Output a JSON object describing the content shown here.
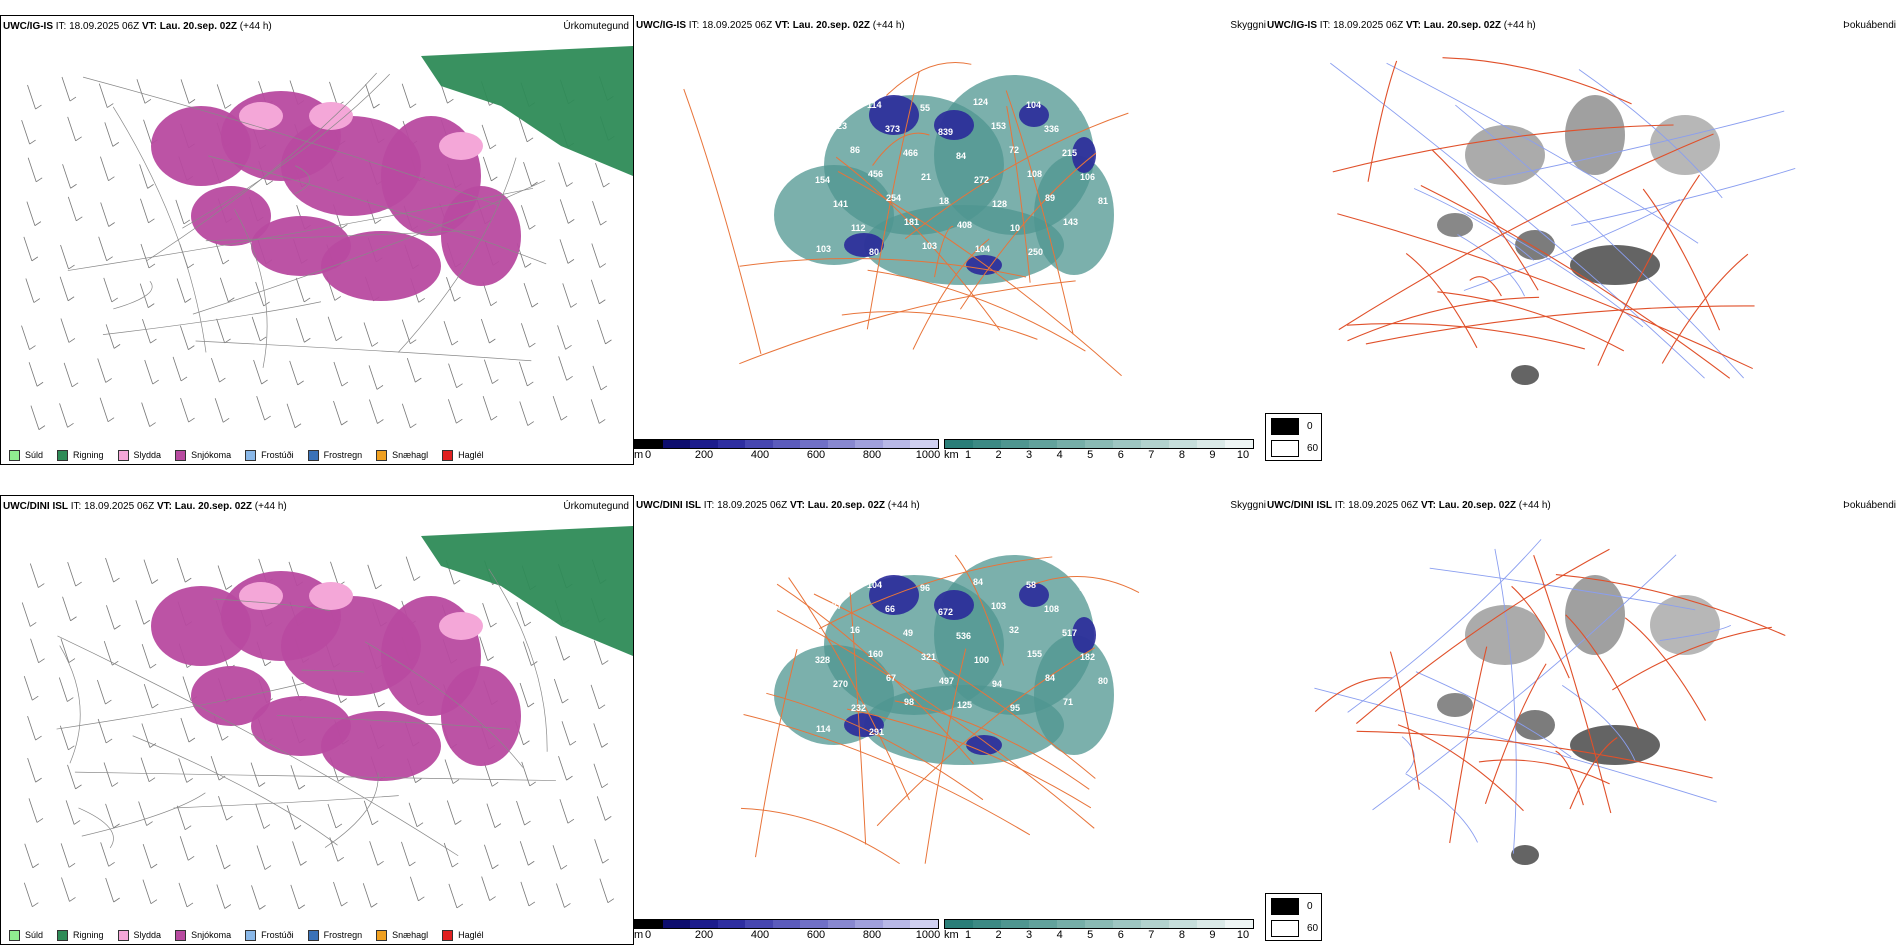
{
  "rows": [
    {
      "model": "UWC/IG-IS",
      "it_label": "IT:",
      "it_value": "18.09.2025 06Z",
      "vt_label": "VT:",
      "vt_value": "Lau. 20.sep. 02Z",
      "lead": "(+44 h)",
      "precip_title": "Úrkomutegund",
      "cloud_title": "Skyggni",
      "fog_title": "Þokuábendi",
      "numbers": [
        "148",
        "114",
        "55",
        "124",
        "104",
        "53",
        "323",
        "373",
        "839",
        "153",
        "336",
        "55",
        "86",
        "466",
        "84",
        "72",
        "215",
        "154",
        "456",
        "21",
        "272",
        "108",
        "106",
        "141",
        "254",
        "18",
        "128",
        "89",
        "81",
        "112",
        "181",
        "408",
        "10",
        "143",
        "103",
        "80",
        "103",
        "104",
        "250"
      ]
    },
    {
      "model": "UWC/DINI ISL",
      "it_label": "IT:",
      "it_value": "18.09.2025 06Z",
      "vt_label": "VT:",
      "vt_value": "Lau. 20.sep. 02Z",
      "lead": "(+44 h)",
      "precip_title": "Úrkomutegund",
      "cloud_title": "Skyggni",
      "fog_title": "Þokuábendi",
      "numbers": [
        "5",
        "104",
        "96",
        "84",
        "58",
        "93",
        "77",
        "66",
        "672",
        "103",
        "108",
        "88",
        "16",
        "49",
        "536",
        "32",
        "517",
        "328",
        "160",
        "321",
        "100",
        "155",
        "182",
        "270",
        "67",
        "497",
        "94",
        "84",
        "80",
        "232",
        "98",
        "125",
        "95",
        "71",
        "114",
        "291"
      ]
    }
  ],
  "legend_precip": [
    {
      "label": "Súld",
      "color": "#90ee90"
    },
    {
      "label": "Rigning",
      "color": "#2e8b57"
    },
    {
      "label": "Slydda",
      "color": "#f4a7d8"
    },
    {
      "label": "Snjókoma",
      "color": "#b84aa0"
    },
    {
      "label": "Frostúði",
      "color": "#8ab8e8"
    },
    {
      "label": "Frostregn",
      "color": "#3a72b8"
    },
    {
      "label": "Snæhagl",
      "color": "#f0a020"
    },
    {
      "label": "Haglél",
      "color": "#e02020"
    }
  ],
  "cloud_base_scale": {
    "unit": "m",
    "ticks": [
      "0",
      "200",
      "400",
      "600",
      "800",
      "1000"
    ],
    "colors": [
      "#000000",
      "#0d0d6e",
      "#1c1c8c",
      "#2e2ea0",
      "#4646b0",
      "#5c5cbc",
      "#7070c6",
      "#8888d0",
      "#a0a0dc",
      "#b8b8e6",
      "#d0d0f0"
    ]
  },
  "visibility_scale": {
    "unit": "km",
    "ticks": [
      "1",
      "2",
      "3",
      "4",
      "5",
      "6",
      "7",
      "8",
      "9",
      "10"
    ],
    "colors": [
      "#2a7e78",
      "#3c8a84",
      "#4f9690",
      "#62a29c",
      "#76aea8",
      "#8abab4",
      "#9ec6c2",
      "#b2d2ce",
      "#c6dedb",
      "#dae9e7",
      "#eef5f4"
    ]
  },
  "fog_scale": {
    "entries": [
      {
        "label": "0",
        "color": "#000000"
      },
      {
        "label": "60",
        "color": "#ffffff"
      }
    ]
  },
  "colors": {
    "land": "#f7e4d6",
    "road": "#e8743a",
    "river": "#8a9ef0",
    "coast": "#000000",
    "snow": "#b84aa0",
    "rain": "#2e8b57",
    "sleet": "#f4a7d8",
    "cloud_teal": "#4f9690",
    "cloud_blue": "#2a2a9a"
  }
}
